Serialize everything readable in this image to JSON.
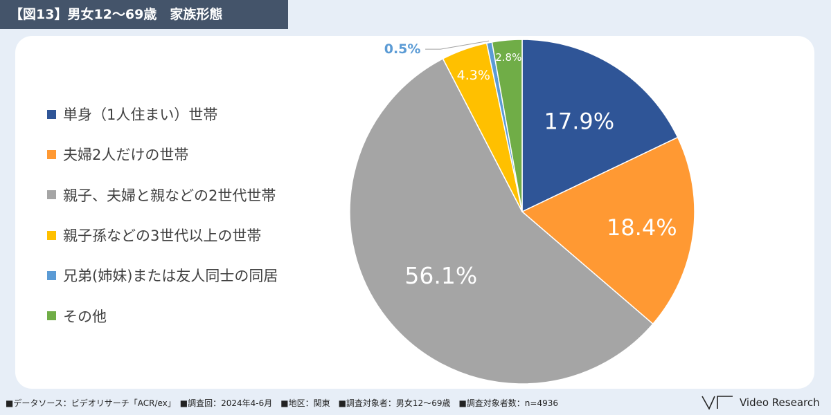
{
  "title": "【図13】男女12～69歳　家族形態",
  "chart_data": {
    "type": "pie",
    "title": "",
    "series": [
      {
        "name": "単身（1人住まい）世帯",
        "value": 17.9,
        "label": "17.9%",
        "color": "#2f5597"
      },
      {
        "name": "夫婦2人だけの世帯",
        "value": 18.4,
        "label": "18.4%",
        "color": "#ff9933"
      },
      {
        "name": "親子、夫婦と親などの2世代世帯",
        "value": 56.1,
        "label": "56.1%",
        "color": "#a5a5a5"
      },
      {
        "name": "親子孫などの3世代以上の世帯",
        "value": 4.3,
        "label": "4.3%",
        "color": "#ffc000"
      },
      {
        "name": "兄弟(姉妹)または友人同士の同居",
        "value": 0.5,
        "label": "0.5%",
        "color": "#5b9bd5"
      },
      {
        "name": "その他",
        "value": 2.8,
        "label": "2.8%",
        "color": "#70ad47"
      }
    ],
    "start_angle": "12 o'clock",
    "direction": "clockwise",
    "legend_position": "left"
  },
  "footer": "■データソース：ビデオリサーチ「ACR/ex」　■調査回：2024年4-6月　■地区：関東　■調査対象者：男女12～69歳　■調査対象者数：n=4936",
  "brand": {
    "name": "Video Research"
  }
}
